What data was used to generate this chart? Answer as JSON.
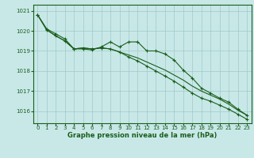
{
  "title": "Graphe pression niveau de la mer (hPa)",
  "background_color": "#c8e8e8",
  "grid_color": "#a0c8c8",
  "line_color": "#1a5e1a",
  "xlim": [
    -0.5,
    23.5
  ],
  "ylim": [
    1015.4,
    1021.3
  ],
  "yticks": [
    1016,
    1017,
    1018,
    1019,
    1020,
    1021
  ],
  "xticks": [
    0,
    1,
    2,
    3,
    4,
    5,
    6,
    7,
    8,
    9,
    10,
    11,
    12,
    13,
    14,
    15,
    16,
    17,
    18,
    19,
    20,
    21,
    22,
    23
  ],
  "series1_x": [
    0,
    1,
    2,
    3,
    4,
    5,
    6,
    7,
    8,
    9,
    10,
    11,
    12,
    13,
    14,
    15,
    16,
    17,
    18,
    19,
    20,
    21,
    22,
    23
  ],
  "series1_y": [
    1020.8,
    1020.1,
    1019.85,
    1019.6,
    1019.1,
    1019.1,
    1019.05,
    1019.2,
    1019.45,
    1019.2,
    1019.45,
    1019.45,
    1019.0,
    1019.0,
    1018.85,
    1018.55,
    1018.05,
    1017.65,
    1017.15,
    1016.9,
    1016.65,
    1016.45,
    1016.1,
    1015.8
  ],
  "series2_x": [
    0,
    1,
    2,
    3,
    4,
    5,
    6,
    7,
    8,
    9,
    10,
    11,
    12,
    13,
    14,
    15,
    16,
    17,
    18,
    19,
    20,
    21,
    22,
    23
  ],
  "series2_y": [
    1020.8,
    1020.05,
    1019.75,
    1019.5,
    1019.1,
    1019.15,
    1019.1,
    1019.15,
    1019.1,
    1018.95,
    1018.8,
    1018.65,
    1018.45,
    1018.25,
    1018.05,
    1017.8,
    1017.55,
    1017.25,
    1017.0,
    1016.8,
    1016.6,
    1016.35,
    1016.05,
    1015.8
  ],
  "series3_x": [
    0,
    1,
    2,
    3,
    4,
    5,
    6,
    7,
    8,
    9,
    10,
    11,
    12,
    13,
    14,
    15,
    16,
    17,
    18,
    19,
    20,
    21,
    22,
    23
  ],
  "series3_y": [
    1020.8,
    1020.05,
    1019.75,
    1019.5,
    1019.1,
    1019.15,
    1019.1,
    1019.15,
    1019.1,
    1018.95,
    1018.7,
    1018.5,
    1018.25,
    1018.0,
    1017.75,
    1017.5,
    1017.2,
    1016.9,
    1016.65,
    1016.5,
    1016.3,
    1016.1,
    1015.85,
    1015.6
  ],
  "figsize": [
    3.2,
    2.0
  ],
  "dpi": 100
}
